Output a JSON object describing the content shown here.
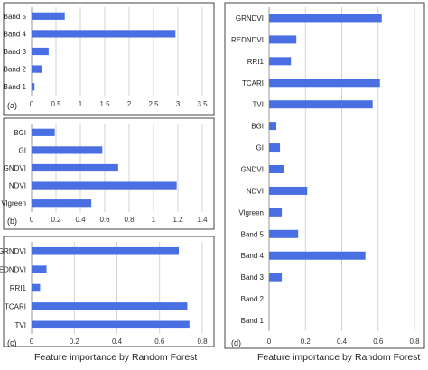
{
  "footer": {
    "left_caption": "Feature importance by Random Forest",
    "right_caption": "Feature importance by Random Forest"
  },
  "chart_data": [
    {
      "id": "a",
      "type": "bar",
      "orientation": "horizontal",
      "panel_label": "(a)",
      "categories": [
        "Band 5",
        "Band 4",
        "Band 3",
        "Band 2",
        "Band 1"
      ],
      "values": [
        0.68,
        2.95,
        0.35,
        0.22,
        0.06
      ],
      "xlim": [
        0,
        3.5
      ],
      "xticks": [
        0,
        0.5,
        1,
        1.5,
        2,
        2.5,
        3,
        3.5
      ],
      "xtick_labels": [
        "0",
        "0.5",
        "1",
        "1.5",
        "2",
        "2.5",
        "3",
        "3.5"
      ],
      "grid": "vertical",
      "bar_color": "#4a6fe3"
    },
    {
      "id": "b",
      "type": "bar",
      "orientation": "horizontal",
      "panel_label": "(b)",
      "categories": [
        "BGI",
        "GI",
        "GNDVI",
        "NDVI",
        "Vlgreen"
      ],
      "values": [
        0.19,
        0.58,
        0.71,
        1.19,
        0.49
      ],
      "xlim": [
        0,
        1.4
      ],
      "xticks": [
        0,
        0.2,
        0.4,
        0.6,
        0.8,
        1,
        1.2,
        1.4
      ],
      "xtick_labels": [
        "0",
        "0.2",
        "0.4",
        "0.6",
        "0.8",
        "1",
        "1.2",
        "1.4"
      ],
      "grid": "vertical",
      "bar_color": "#4a6fe3"
    },
    {
      "id": "c",
      "type": "bar",
      "orientation": "horizontal",
      "panel_label": "(c)",
      "categories": [
        "GRNDVI",
        "REDNDVI",
        "RRI1",
        "TCARI",
        "TVI"
      ],
      "values": [
        0.69,
        0.07,
        0.04,
        0.73,
        0.74
      ],
      "xlim": [
        0,
        0.8
      ],
      "xticks": [
        0,
        0.2,
        0.4,
        0.6,
        0.8
      ],
      "xtick_labels": [
        "0",
        "0.2",
        "0.4",
        "0.6",
        "0.8"
      ],
      "grid": "vertical",
      "bar_color": "#4a6fe3"
    },
    {
      "id": "d",
      "type": "bar",
      "orientation": "horizontal",
      "panel_label": "(d)",
      "categories": [
        "GRNDVI",
        "REDNDVI",
        "RRI1",
        "TCARI",
        "TVI",
        "BGI",
        "GI",
        "GNDVI",
        "NDVI",
        "Vlgreen",
        "Band 5",
        "Band 4",
        "Band 3",
        "Band 2",
        "Band 1"
      ],
      "values": [
        0.62,
        0.15,
        0.12,
        0.61,
        0.57,
        0.04,
        0.06,
        0.08,
        0.21,
        0.07,
        0.16,
        0.53,
        0.07,
        0.0,
        0.0
      ],
      "xlim": [
        0,
        0.8
      ],
      "xticks": [
        0,
        0.2,
        0.4,
        0.6,
        0.8
      ],
      "xtick_labels": [
        "0",
        "0.2",
        "0.4",
        "0.6",
        "0.8"
      ],
      "grid": "vertical",
      "bar_color": "#4a6fe3"
    }
  ]
}
